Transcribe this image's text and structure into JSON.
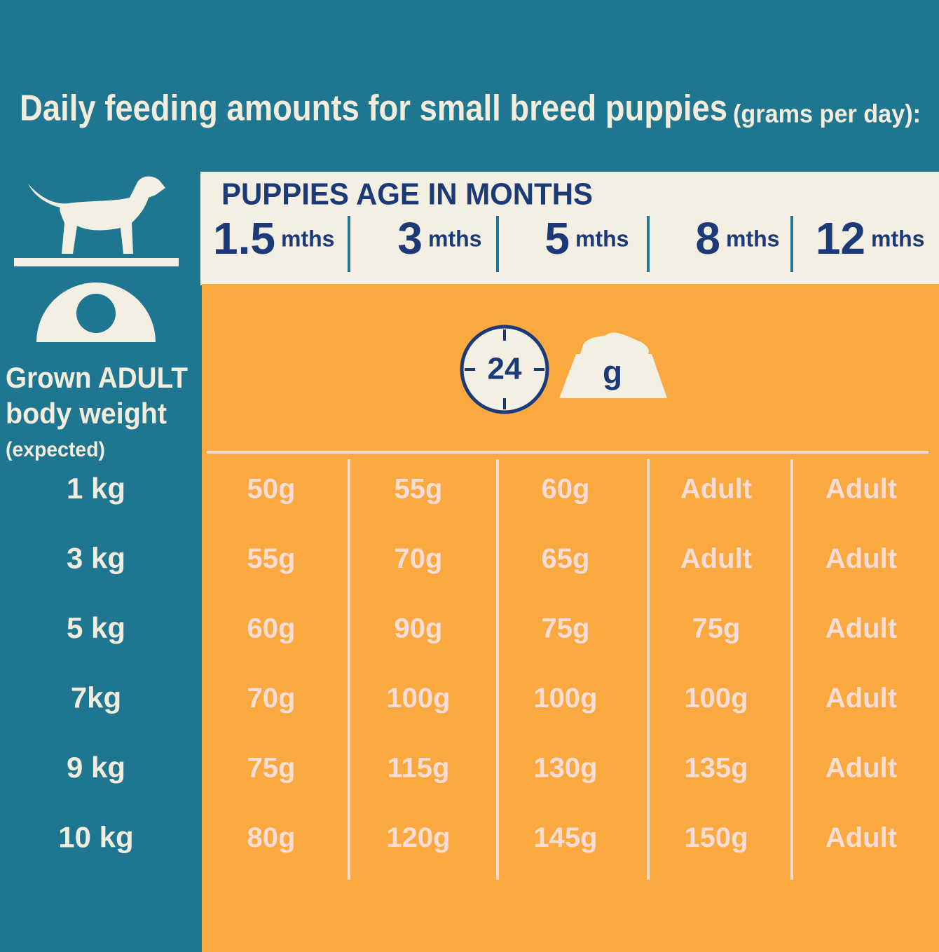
{
  "header": {
    "title": "Daily feeding amounts for small breed puppies",
    "subtitle": "(grams per day):"
  },
  "row_header": {
    "lines": [
      "Grown ADULT",
      "body weight",
      "(expected)"
    ]
  },
  "table": {
    "heading": "PUPPIES AGE IN MONTHS",
    "columns": [
      {
        "number": "1.5",
        "unit": "mths"
      },
      {
        "number": "3",
        "unit": "mths"
      },
      {
        "number": "5",
        "unit": "mths"
      },
      {
        "number": "8",
        "unit": "mths"
      },
      {
        "number": "12",
        "unit": "mths"
      }
    ],
    "icons": {
      "clock": "24",
      "bowl": "g"
    },
    "rows": [
      {
        "weight": "1 kg",
        "values": [
          "50g",
          "55g",
          "60g",
          "Adult",
          "Adult"
        ]
      },
      {
        "weight": "3 kg",
        "values": [
          "55g",
          "70g",
          "65g",
          "Adult",
          "Adult"
        ]
      },
      {
        "weight": "5 kg",
        "values": [
          "60g",
          "90g",
          "75g",
          "75g",
          "Adult"
        ]
      },
      {
        "weight": "7kg",
        "values": [
          "70g",
          "100g",
          "100g",
          "100g",
          "Adult"
        ]
      },
      {
        "weight": "9 kg",
        "values": [
          "75g",
          "115g",
          "130g",
          "135g",
          "Adult"
        ]
      },
      {
        "weight": "10 kg",
        "values": [
          "80g",
          "120g",
          "145g",
          "150g",
          "Adult"
        ]
      }
    ]
  }
}
